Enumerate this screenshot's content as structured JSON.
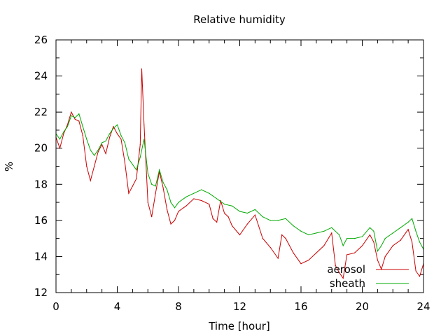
{
  "chart_data": {
    "type": "line",
    "title": "Relative humidity",
    "xlabel": "Time [hour]",
    "ylabel": "%",
    "xlim": [
      0,
      24
    ],
    "ylim": [
      12,
      26
    ],
    "xticks": [
      0,
      4,
      8,
      12,
      16,
      20,
      24
    ],
    "yticks": [
      12,
      14,
      16,
      18,
      20,
      22,
      24,
      26
    ],
    "grid": false,
    "legend_position": "bottom-right",
    "series": [
      {
        "name": "aerosol",
        "color": "#cc0000",
        "x": [
          0,
          0.25,
          0.5,
          0.75,
          1.0,
          1.25,
          1.5,
          1.75,
          2.0,
          2.25,
          2.5,
          2.75,
          3.0,
          3.25,
          3.5,
          3.75,
          4.0,
          4.25,
          4.5,
          4.75,
          5.0,
          5.25,
          5.5,
          5.6,
          5.75,
          6.0,
          6.25,
          6.5,
          6.75,
          7.0,
          7.25,
          7.5,
          7.75,
          8.0,
          8.5,
          9.0,
          9.5,
          10.0,
          10.25,
          10.5,
          10.75,
          11.0,
          11.25,
          11.5,
          12.0,
          12.5,
          13.0,
          13.5,
          14.0,
          14.5,
          14.75,
          15.0,
          15.5,
          16.0,
          16.5,
          17.0,
          17.5,
          18.0,
          18.25,
          18.5,
          18.75,
          19.0,
          19.5,
          20.0,
          20.5,
          20.75,
          21.0,
          21.25,
          21.5,
          22.0,
          22.5,
          23.0,
          23.25,
          23.5,
          23.75,
          24.0
        ],
        "values": [
          20.6,
          20.0,
          20.8,
          21.3,
          22.0,
          21.6,
          21.5,
          20.7,
          19.0,
          18.2,
          19.0,
          19.8,
          20.2,
          19.7,
          20.6,
          21.2,
          20.8,
          20.5,
          19.2,
          17.5,
          17.9,
          18.3,
          20.2,
          24.4,
          21.3,
          17.0,
          16.2,
          17.5,
          18.7,
          17.8,
          16.6,
          15.8,
          16.0,
          16.5,
          16.8,
          17.2,
          17.1,
          16.9,
          16.1,
          15.9,
          17.1,
          16.4,
          16.2,
          15.7,
          15.2,
          15.8,
          16.3,
          15.0,
          14.5,
          13.9,
          15.2,
          15.0,
          14.2,
          13.6,
          13.8,
          14.2,
          14.6,
          15.3,
          13.5,
          13.1,
          12.8,
          14.1,
          14.2,
          14.6,
          15.2,
          14.8,
          13.8,
          13.3,
          14.0,
          14.6,
          14.9,
          15.5,
          14.8,
          13.2,
          12.9,
          13.6
        ]
      },
      {
        "name": "sheath",
        "color": "#00aa00",
        "x": [
          0,
          0.25,
          0.5,
          0.75,
          1.0,
          1.25,
          1.5,
          1.75,
          2.0,
          2.25,
          2.5,
          2.75,
          3.0,
          3.25,
          3.5,
          3.75,
          4.0,
          4.25,
          4.5,
          4.75,
          5.0,
          5.25,
          5.5,
          5.75,
          6.0,
          6.25,
          6.5,
          6.75,
          7.0,
          7.25,
          7.5,
          7.75,
          8.0,
          8.5,
          9.0,
          9.5,
          10.0,
          10.5,
          11.0,
          11.5,
          12.0,
          12.5,
          13.0,
          13.5,
          14.0,
          14.5,
          15.0,
          15.5,
          16.0,
          16.5,
          17.0,
          17.5,
          18.0,
          18.5,
          18.75,
          19.0,
          19.5,
          20.0,
          20.5,
          20.75,
          21.0,
          21.25,
          21.5,
          22.0,
          22.5,
          23.0,
          23.25,
          23.5,
          23.75,
          24.0
        ],
        "values": [
          20.8,
          20.5,
          20.9,
          21.2,
          21.8,
          21.7,
          21.9,
          21.2,
          20.5,
          19.9,
          19.6,
          19.9,
          20.3,
          20.4,
          20.8,
          21.1,
          21.3,
          20.7,
          20.3,
          19.4,
          19.1,
          18.8,
          19.5,
          20.5,
          18.6,
          18.0,
          17.9,
          18.8,
          18.1,
          17.7,
          17.0,
          16.7,
          17.0,
          17.3,
          17.5,
          17.7,
          17.5,
          17.2,
          16.9,
          16.8,
          16.5,
          16.4,
          16.6,
          16.2,
          16.0,
          16.0,
          16.1,
          15.7,
          15.4,
          15.2,
          15.3,
          15.4,
          15.6,
          15.2,
          14.6,
          15.0,
          15.0,
          15.1,
          15.6,
          15.4,
          14.3,
          14.6,
          15.0,
          15.3,
          15.6,
          15.9,
          16.1,
          15.4,
          14.8,
          14.4
        ]
      }
    ]
  }
}
